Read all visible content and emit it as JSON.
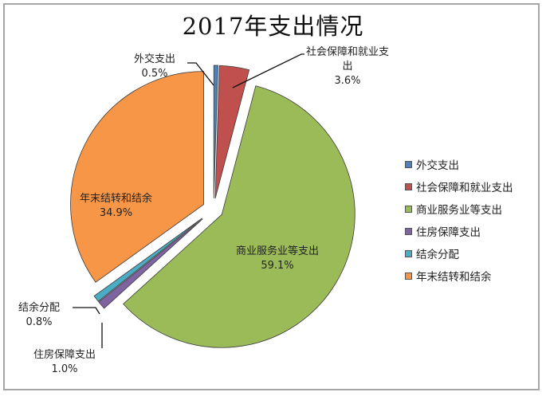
{
  "chart_data": {
    "type": "pie",
    "title": "2017年支出情况",
    "exploded": true,
    "start_angle_deg": 0,
    "direction": "clockwise",
    "categories": [
      "外交支出",
      "社会保障和就业支出",
      "商业服务业等支出",
      "住房保障支出",
      "结余分配",
      "年末结转和结余"
    ],
    "values": [
      0.5,
      3.6,
      59.1,
      1.0,
      0.8,
      34.9
    ],
    "value_unit": "%",
    "colors": [
      "#4f81bd",
      "#c0504d",
      "#9bbb59",
      "#8064a2",
      "#4bacc6",
      "#f79646"
    ],
    "data_labels": [
      {
        "name": "外交支出",
        "pct": "0.5%"
      },
      {
        "name": "社会保障和就业支出",
        "pct": "3.6%"
      },
      {
        "name": "商业服务业等支出",
        "pct": "59.1%"
      },
      {
        "name": "住房保障支出",
        "pct": "1.0%"
      },
      {
        "name": "结余分配",
        "pct": "0.8%"
      },
      {
        "name": "年末结转和结余",
        "pct": "34.9%"
      }
    ],
    "legend_position": "right"
  },
  "labels": {
    "waijiao": {
      "name": "外交支出",
      "pct": "0.5%"
    },
    "shehui": {
      "name_line1": "社会保障和就业支",
      "name_line2": "出",
      "pct": "3.6%"
    },
    "shangye": {
      "name": "商业服务业等支出",
      "pct": "59.1%"
    },
    "zhufang": {
      "name": "住房保障支出",
      "pct": "1.0%"
    },
    "jieyu": {
      "name": "结余分配",
      "pct": "0.8%"
    },
    "nianmo": {
      "name": "年末结转和结余",
      "pct": "34.9%"
    }
  },
  "legend": [
    {
      "label": "外交支出",
      "color": "#4f81bd"
    },
    {
      "label": "社会保障和就业支出",
      "color": "#c0504d"
    },
    {
      "label": "商业服务业等支出",
      "color": "#9bbb59"
    },
    {
      "label": "住房保障支出",
      "color": "#8064a2"
    },
    {
      "label": "结余分配",
      "color": "#4bacc6"
    },
    {
      "label": "年末结转和结余",
      "color": "#f79646"
    }
  ]
}
